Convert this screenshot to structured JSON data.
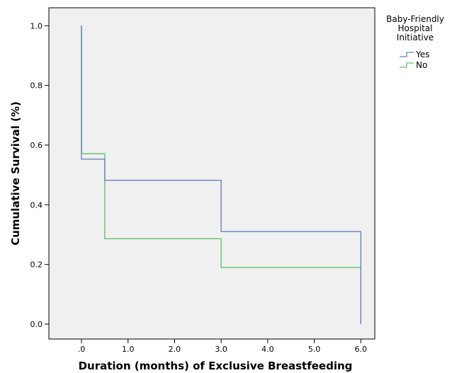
{
  "chart_data": {
    "type": "line",
    "subtype": "survival-step",
    "xlabel": "Duration (months) of Exclusive Breastfeeding",
    "ylabel": "Cumulative Survival (%)",
    "xlim": [
      -0.7,
      6.3
    ],
    "ylim": [
      -0.05,
      1.06
    ],
    "x_ticks": [
      0,
      1,
      2,
      3,
      4,
      5,
      6
    ],
    "x_tick_labels": [
      ".0",
      "1.0",
      "2.0",
      "3.0",
      "4.0",
      "5.0",
      "6.0"
    ],
    "y_ticks": [
      0,
      0.2,
      0.4,
      0.6,
      0.8,
      1.0
    ],
    "y_tick_labels": [
      "0.0",
      "0.2",
      "0.4",
      "0.6",
      "0.8",
      "1.0"
    ],
    "grid": false,
    "plot_background": "#f0f0f0",
    "legend": {
      "title": [
        "Baby-Friendly",
        "Hospital",
        "Initiative"
      ],
      "placement": "right-top"
    },
    "series": [
      {
        "name": "Yes",
        "color": "#6a80c2",
        "x": [
          0,
          0,
          0.5,
          0.5,
          3.0,
          3.0,
          6.0,
          6.0
        ],
        "y": [
          1.0,
          0.553,
          0.553,
          0.482,
          0.482,
          0.31,
          0.31,
          0.0
        ]
      },
      {
        "name": "No",
        "color": "#5ec46e",
        "x": [
          0,
          0,
          0.5,
          0.5,
          3.0,
          3.0,
          6.0,
          6.0
        ],
        "y": [
          1.0,
          0.571,
          0.571,
          0.286,
          0.286,
          0.19,
          0.19,
          0.0
        ]
      }
    ]
  }
}
